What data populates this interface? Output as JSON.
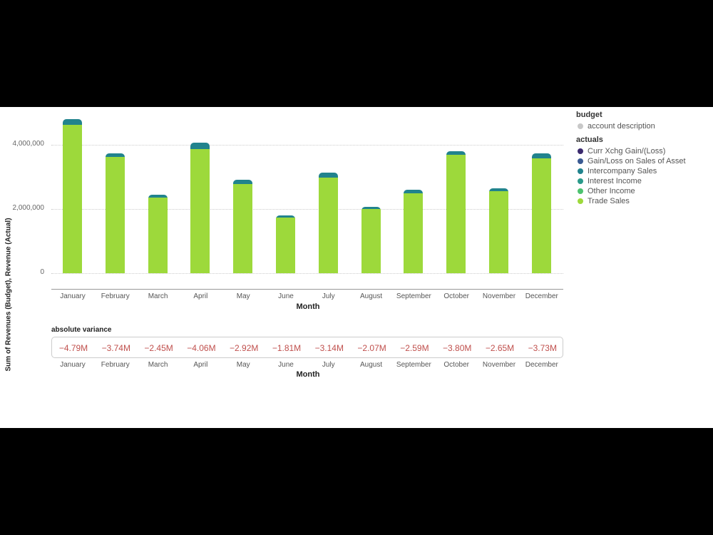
{
  "chart_data": {
    "type": "bar",
    "stacked": true,
    "title": "",
    "xlabel": "Month",
    "ylabel": "Sum of Revenues (Budget), Revenue (Actual)",
    "ylim": [
      0,
      5000000
    ],
    "yticks": [
      "0",
      "2,000,000",
      "4,000,000"
    ],
    "grid": true,
    "legend_position": "right",
    "categories": [
      "January",
      "February",
      "March",
      "April",
      "May",
      "June",
      "July",
      "August",
      "September",
      "October",
      "November",
      "December"
    ],
    "series": [
      {
        "name": "Trade Sales",
        "color": "#9dd93b",
        "values": [
          4620000,
          3620000,
          2360000,
          3870000,
          2780000,
          1730000,
          2980000,
          2000000,
          2490000,
          3690000,
          2560000,
          3580000
        ]
      },
      {
        "name": "Intercompany Sales",
        "color": "#21838d",
        "values": [
          170000,
          120000,
          90000,
          190000,
          140000,
          80000,
          160000,
          70000,
          100000,
          110000,
          90000,
          150000
        ]
      }
    ],
    "totals": [
      4790000,
      3740000,
      2450000,
      4060000,
      2920000,
      1810000,
      3140000,
      2070000,
      2590000,
      3800000,
      2650000,
      3730000
    ],
    "variance": {
      "title": "absolute variance",
      "values": [
        "−4.79M",
        "−3.74M",
        "−2.45M",
        "−4.06M",
        "−2.92M",
        "−1.81M",
        "−3.14M",
        "−2.07M",
        "−2.59M",
        "−3.80M",
        "−2.65M",
        "−3.73M"
      ],
      "color": "#c0504d"
    }
  },
  "legend": {
    "budget": {
      "title": "budget",
      "items": [
        {
          "label": "account description",
          "color": "#c8c8c8"
        }
      ]
    },
    "actuals": {
      "title": "actuals",
      "items": [
        {
          "label": "Curr Xchg Gain/(Loss)",
          "color": "#3b2a6e"
        },
        {
          "label": "Gain/Loss on Sales of Asset",
          "color": "#3a5a92"
        },
        {
          "label": "Intercompany Sales",
          "color": "#21838d"
        },
        {
          "label": "Interest Income",
          "color": "#2a9a8a"
        },
        {
          "label": "Other Income",
          "color": "#4cc26f"
        },
        {
          "label": "Trade Sales",
          "color": "#9dd93b"
        }
      ]
    }
  }
}
